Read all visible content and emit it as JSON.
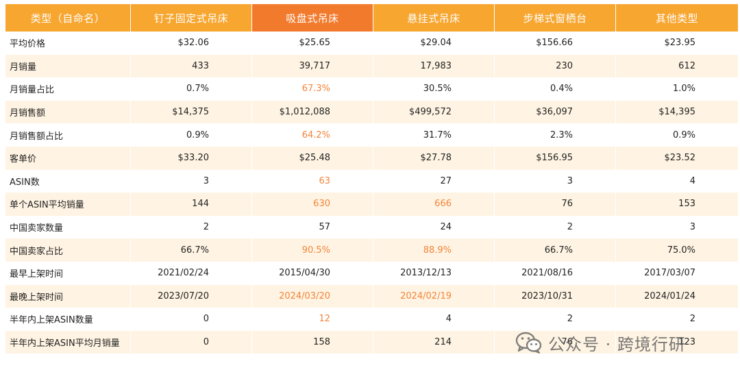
{
  "header": [
    "类型（自命名）",
    "钉子固定式吊床",
    "吸盘式吊床",
    "悬挂式吊床",
    "步梯式窗栖台",
    "其他类型"
  ],
  "highlight_header_index": 2,
  "rows": [
    {
      "label": "平均价格",
      "values": [
        "$32.06",
        "$25.65",
        "$29.04",
        "$156.66",
        "$23.95"
      ],
      "highlight": []
    },
    {
      "label": "月销量",
      "values": [
        "433",
        "39,717",
        "17,983",
        "230",
        "612"
      ],
      "highlight": []
    },
    {
      "label": "月销量占比",
      "values": [
        "0.7%",
        "67.3%",
        "30.5%",
        "0.4%",
        "1.0%"
      ],
      "highlight": [
        1
      ]
    },
    {
      "label": "月销售额",
      "values": [
        "$14,375",
        "$1,012,088",
        "$499,572",
        "$36,097",
        "$14,395"
      ],
      "highlight": []
    },
    {
      "label": "月销售额占比",
      "values": [
        "0.9%",
        "64.2%",
        "31.7%",
        "2.3%",
        "0.9%"
      ],
      "highlight": [
        1
      ]
    },
    {
      "label": "客单价",
      "values": [
        "$33.20",
        "$25.48",
        "$27.78",
        "$156.95",
        "$23.52"
      ],
      "highlight": []
    },
    {
      "label": "ASIN数",
      "values": [
        "3",
        "63",
        "27",
        "3",
        "4"
      ],
      "highlight": [
        1
      ]
    },
    {
      "label": "单个ASIN平均销量",
      "values": [
        "144",
        "630",
        "666",
        "76",
        "153"
      ],
      "highlight": [
        1,
        2
      ]
    },
    {
      "label": "中国卖家数量",
      "values": [
        "2",
        "57",
        "24",
        "2",
        "3"
      ],
      "highlight": []
    },
    {
      "label": "中国卖家占比",
      "values": [
        "66.7%",
        "90.5%",
        "88.9%",
        "66.7%",
        "75.0%"
      ],
      "highlight": [
        1,
        2
      ]
    },
    {
      "label": "最早上架时间",
      "values": [
        "2021/02/24",
        "2015/04/30",
        "2013/12/13",
        "2021/08/16",
        "2017/03/07"
      ],
      "highlight": []
    },
    {
      "label": "最晚上架时间",
      "values": [
        "2023/07/20",
        "2024/03/20",
        "2024/02/19",
        "2023/10/31",
        "2024/01/24"
      ],
      "highlight": [
        1,
        2
      ]
    },
    {
      "label": "半年内上架ASIN数量",
      "values": [
        "0",
        "12",
        "4",
        "2",
        "2"
      ],
      "highlight": [
        1
      ]
    },
    {
      "label": "半年内上架ASIN平均月销量",
      "values": [
        "0",
        "158",
        "214",
        "76",
        "123"
      ],
      "highlight": []
    }
  ],
  "watermark": {
    "text": "公众号 · 跨境行研",
    "icon": "wechat-icon"
  },
  "colors": {
    "header_bg": "#f7a630",
    "header_highlight_bg": "#f27a2c",
    "row_alt_bg": "#fff4e3",
    "highlight_text": "#f2843a"
  }
}
